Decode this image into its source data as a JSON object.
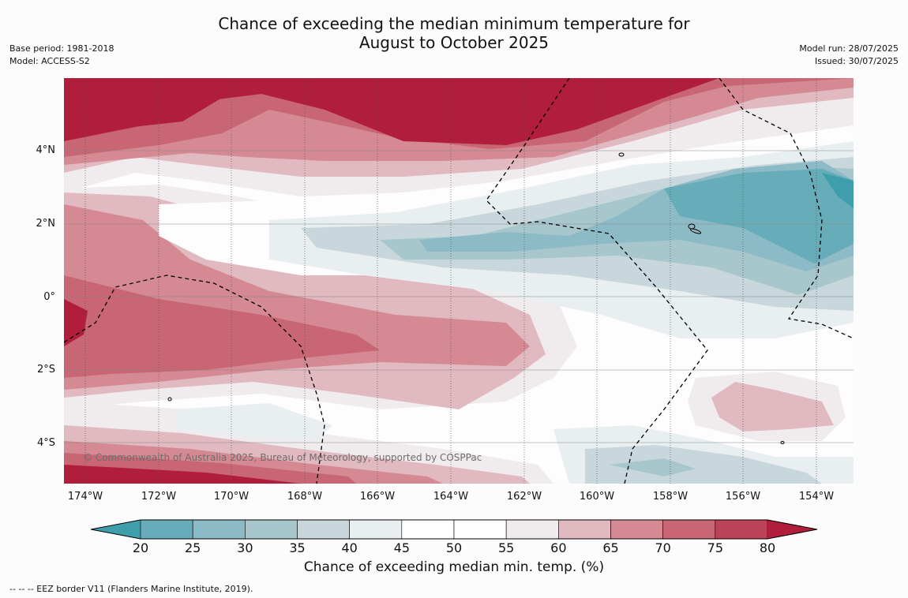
{
  "title_line1": "Chance of exceeding the median minimum temperature for",
  "title_line2": "August to October 2025",
  "meta_left": {
    "base_period": "Base period: 1981-2018",
    "model": "Model: ACCESS-S2"
  },
  "meta_right": {
    "model_run": "Model run: 28/07/2025",
    "issued": "Issued: 30/07/2025"
  },
  "copyright": "© Commonwealth of Australia 2025, Bureau of Meteorology, supported by COSPPac",
  "lat_labels": [
    "4°N",
    "2°N",
    "0°",
    "2°S",
    "4°S"
  ],
  "lon_labels": [
    "174°W",
    "172°W",
    "170°W",
    "168°W",
    "166°W",
    "164°W",
    "162°W",
    "160°W",
    "158°W",
    "156°W",
    "154°W"
  ],
  "colorbar": {
    "ticks": [
      "20",
      "25",
      "30",
      "35",
      "40",
      "45",
      "50",
      "55",
      "60",
      "65",
      "70",
      "75",
      "80"
    ],
    "colors": [
      "#3e9eac",
      "#66adb9",
      "#8cbac6",
      "#a8c7cd",
      "#c8d7dc",
      "#e9eff1",
      "#ffffff",
      "#ffffff",
      "#f0ecee",
      "#e1b9c0",
      "#d48993",
      "#c86674",
      "#bc4257",
      "#b01e3c"
    ],
    "title": "Chance of exceeding median min. temp. (%)"
  },
  "eez_note": "--  --  -- EEZ border V11 (Flanders Marine Institute, 2019)."
}
